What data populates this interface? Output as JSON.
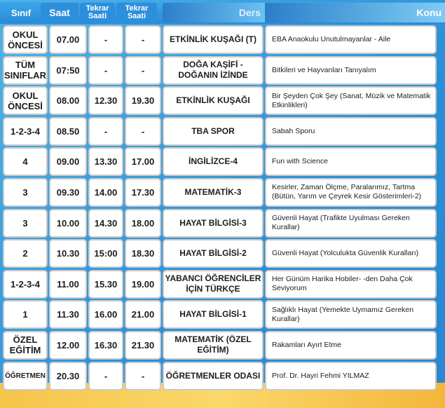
{
  "header": {
    "sinif": "Sınıf",
    "saat": "Saat",
    "tekrar1": "Tekrar Saati",
    "tekrar2": "Tekrar Saati",
    "ders": "Ders",
    "konu": "Konu"
  },
  "rows": [
    {
      "sinif": "OKUL ÖNCESİ",
      "saat": "07.00",
      "t1": "-",
      "t2": "-",
      "ders": "ETKİNLİK KUŞAĞI (T)",
      "konu": "EBA Anaokulu Unutulmayanlar - Aile"
    },
    {
      "sinif": "TÜM SINIFLAR",
      "saat": "07:50",
      "t1": "-",
      "t2": "-",
      "ders": "DOĞA KAŞİFİ - DOĞANIN İZİNDE",
      "konu": "Bitkileri ve Hayvanları Tanıyalım"
    },
    {
      "sinif": "OKUL ÖNCESİ",
      "saat": "08.00",
      "t1": "12.30",
      "t2": "19.30",
      "ders": "ETKİNLİK KUŞAĞI",
      "konu": "Bir Şeyden Çok Şey (Sanat, Müzik ve Matematik Etkinlikleri)"
    },
    {
      "sinif": "1-2-3-4",
      "saat": "08.50",
      "t1": "-",
      "t2": "-",
      "ders": "TBA SPOR",
      "konu": "Sabah Sporu"
    },
    {
      "sinif": "4",
      "saat": "09.00",
      "t1": "13.30",
      "t2": "17.00",
      "ders": "İNGİLİZCE-4",
      "konu": "Fun with Science"
    },
    {
      "sinif": "3",
      "saat": "09.30",
      "t1": "14.00",
      "t2": "17.30",
      "ders": "MATEMATİK-3",
      "konu": "Kesirler, Zaman Ölçme, Paralarımız, Tartma (Bütün, Yarım ve Çeyrek Kesir Gösterimleri-2)"
    },
    {
      "sinif": "3",
      "saat": "10.00",
      "t1": "14.30",
      "t2": "18.00",
      "ders": "HAYAT BİLGİSİ-3",
      "konu": "Güvenli Hayat (Trafikte Uyulması Gereken Kurallar)"
    },
    {
      "sinif": "2",
      "saat": "10.30",
      "t1": "15:00",
      "t2": "18.30",
      "ders": "HAYAT BİLGİSİ-2",
      "konu": "Güvenli Hayat (Yolculukta Güvenlik Kuralları)"
    },
    {
      "sinif": "1-2-3-4",
      "saat": "11.00",
      "t1": "15.30",
      "t2": "19.00",
      "ders": "YABANCI ÖĞRENCİLER İÇİN TÜRKÇE",
      "konu": "Her Günüm Harika Hobiler- -den Daha Çok Seviyorum"
    },
    {
      "sinif": "1",
      "saat": "11.30",
      "t1": "16.00",
      "t2": "21.00",
      "ders": "HAYAT BİLGİSİ-1",
      "konu": "Sağlıklı Hayat (Yemekte Uymamız Gereken Kurallar)"
    },
    {
      "sinif": "ÖZEL EĞİTİM",
      "saat": "12.00",
      "t1": "16.30",
      "t2": "21.30",
      "ders": "MATEMATİK (ÖZEL EĞİTİM)",
      "konu": "Rakamları Ayırt Etme"
    },
    {
      "sinif": "ÖĞRETMEN",
      "saat": "20.30",
      "t1": "-",
      "t2": "-",
      "ders": "ÖĞRETMENLER ODASI",
      "konu": "Prof. Dr. Hayri Fehmi YILMAZ"
    }
  ]
}
